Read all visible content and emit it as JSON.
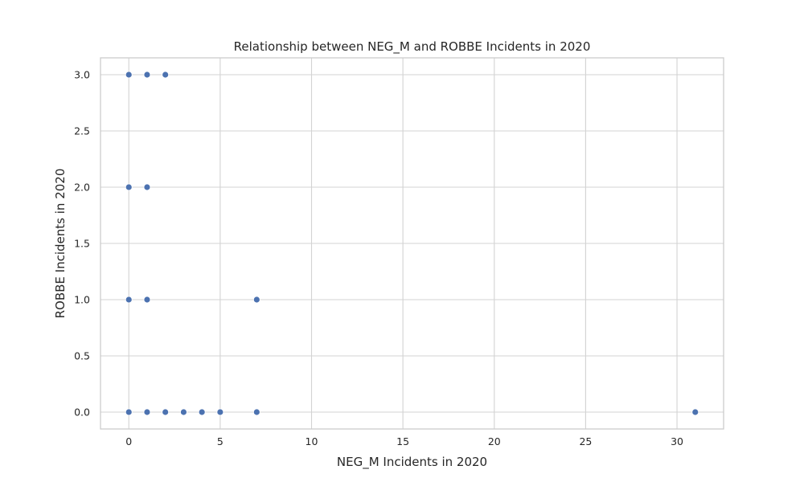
{
  "chart_data": {
    "type": "scatter",
    "title": "Relationship between NEG_M and ROBBE Incidents in 2020",
    "xlabel": "NEG_M Incidents in 2020",
    "ylabel": "ROBBE Incidents in 2020",
    "xlim": [
      -1.55,
      32.55
    ],
    "ylim": [
      -0.15,
      3.15
    ],
    "x_ticks": [
      0,
      5,
      10,
      15,
      20,
      25,
      30
    ],
    "x_tick_labels": [
      "0",
      "5",
      "10",
      "15",
      "20",
      "25",
      "30"
    ],
    "y_ticks": [
      0.0,
      0.5,
      1.0,
      1.5,
      2.0,
      2.5,
      3.0
    ],
    "y_tick_labels": [
      "0.0",
      "0.5",
      "1.0",
      "1.5",
      "2.0",
      "2.5",
      "3.0"
    ],
    "grid": true,
    "point_color": "#4c72b0",
    "points": [
      {
        "x": 0,
        "y": 3
      },
      {
        "x": 1,
        "y": 3
      },
      {
        "x": 2,
        "y": 3
      },
      {
        "x": 0,
        "y": 2
      },
      {
        "x": 1,
        "y": 2
      },
      {
        "x": 0,
        "y": 1
      },
      {
        "x": 1,
        "y": 1
      },
      {
        "x": 7,
        "y": 1
      },
      {
        "x": 0,
        "y": 0
      },
      {
        "x": 1,
        "y": 0
      },
      {
        "x": 2,
        "y": 0
      },
      {
        "x": 3,
        "y": 0
      },
      {
        "x": 4,
        "y": 0
      },
      {
        "x": 5,
        "y": 0
      },
      {
        "x": 7,
        "y": 0
      },
      {
        "x": 31,
        "y": 0
      }
    ]
  }
}
